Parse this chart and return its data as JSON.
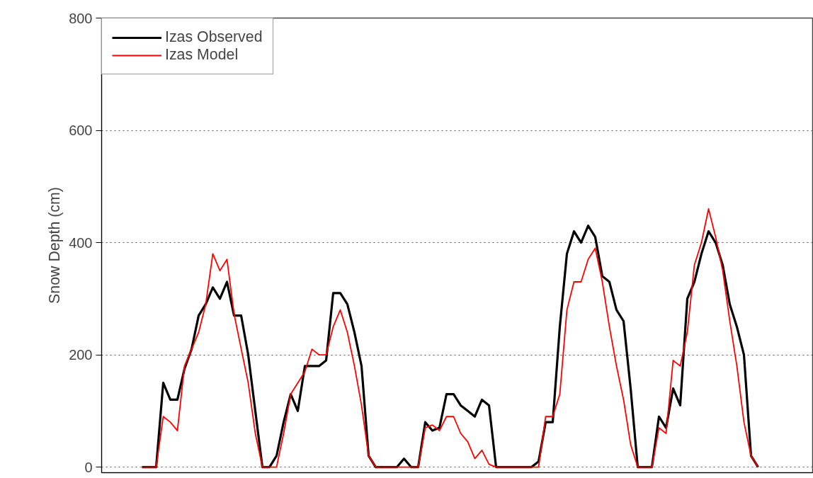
{
  "chart_data": {
    "type": "line",
    "ylabel": "Snow Depth (cm)",
    "categories": [
      null,
      null,
      null,
      null,
      null,
      null,
      null,
      null,
      null,
      null,
      null,
      null,
      null,
      null,
      null,
      null,
      null,
      null,
      null,
      null,
      null,
      null,
      null,
      null,
      null,
      null,
      null,
      null,
      null,
      null,
      null,
      null,
      null,
      null,
      null,
      null,
      null,
      null,
      null,
      null,
      null,
      null,
      null,
      null,
      null,
      null,
      null,
      null,
      null,
      null,
      null,
      null,
      null,
      null,
      null,
      null,
      null,
      null,
      null,
      null,
      null,
      null,
      null,
      null,
      null,
      null,
      null,
      null,
      null,
      null,
      null,
      null,
      null,
      null,
      null,
      null,
      null,
      null,
      null,
      null,
      null,
      null,
      null,
      null,
      null,
      null,
      null,
      null
    ],
    "series": [
      {
        "name": "Izas Observed",
        "color": "#000000",
        "values": [
          0,
          0,
          0,
          150,
          120,
          120,
          175,
          210,
          270,
          290,
          320,
          300,
          330,
          270,
          270,
          200,
          100,
          0,
          0,
          20,
          80,
          130,
          100,
          180,
          180,
          180,
          190,
          310,
          310,
          290,
          240,
          180,
          20,
          0,
          0,
          0,
          0,
          15,
          0,
          0,
          80,
          65,
          70,
          130,
          130,
          110,
          100,
          90,
          120,
          110,
          0,
          0,
          0,
          0,
          0,
          0,
          10,
          80,
          80,
          250,
          380,
          420,
          400,
          430,
          410,
          340,
          330,
          280,
          260,
          140,
          0,
          0,
          0,
          90,
          70,
          140,
          110,
          300,
          330,
          380,
          420,
          400,
          360,
          290,
          250,
          200,
          20,
          0
        ]
      },
      {
        "name": "Izas Model",
        "color": "#ff0000",
        "values": [
          0,
          0,
          0,
          90,
          80,
          65,
          180,
          210,
          240,
          290,
          380,
          350,
          370,
          273,
          211,
          150,
          60,
          0,
          0,
          0,
          60,
          130,
          150,
          170,
          210,
          200,
          200,
          250,
          280,
          240,
          180,
          110,
          20,
          0,
          0,
          0,
          0,
          0,
          0,
          0,
          70,
          75,
          65,
          90,
          90,
          60,
          45,
          15,
          30,
          5,
          0,
          0,
          0,
          0,
          0,
          0,
          0,
          90,
          90,
          130,
          280,
          330,
          330,
          370,
          390,
          330,
          250,
          180,
          120,
          40,
          0,
          0,
          0,
          70,
          60,
          190,
          180,
          240,
          360,
          400,
          460,
          410,
          350,
          260,
          180,
          80,
          20,
          0
        ]
      }
    ],
    "ylim": [
      -10,
      800
    ],
    "yticks": [
      0,
      200,
      400,
      600,
      800
    ],
    "grid": "y",
    "legend": "top left",
    "line_style": "solid",
    "marker": "none",
    "tick_labels": "y"
  }
}
